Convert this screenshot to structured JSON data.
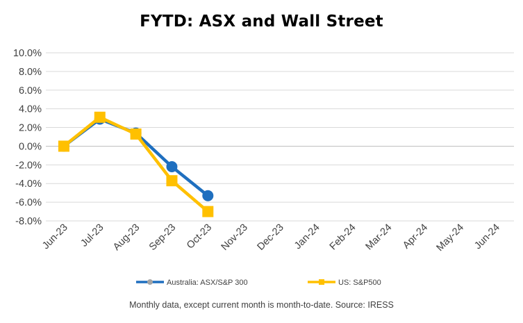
{
  "chart_data": {
    "type": "line",
    "title": "FYTD: ASX and Wall Street",
    "xlabel": "",
    "ylabel": "",
    "categories": [
      "Jun-23",
      "Jul-23",
      "Aug-23",
      "Sep-23",
      "Oct-23",
      "Nov-23",
      "Dec-23",
      "Jan-24",
      "Feb-24",
      "Mar-24",
      "Apr-24",
      "May-24",
      "Jun-24"
    ],
    "ylim": [
      -8.0,
      10.0
    ],
    "yticks": [
      -8.0,
      -6.0,
      -4.0,
      -2.0,
      0.0,
      2.0,
      4.0,
      6.0,
      8.0,
      10.0
    ],
    "ytick_labels": [
      "-8.0%",
      "-6.0%",
      "-4.0%",
      "-2.0%",
      "0.0%",
      "2.0%",
      "4.0%",
      "6.0%",
      "8.0%",
      "10.0%"
    ],
    "grid": true,
    "legend_position": "bottom",
    "series": [
      {
        "name": "Australia: ASX/S&P 300",
        "color": "#1f6fbf",
        "marker": "circle",
        "values": [
          0.0,
          2.9,
          1.4,
          -2.2,
          -5.3,
          null,
          null,
          null,
          null,
          null,
          null,
          null,
          null
        ]
      },
      {
        "name": "US: S&P500",
        "color": "#ffc000",
        "marker": "square",
        "values": [
          0.0,
          3.1,
          1.3,
          -3.7,
          -7.0,
          null,
          null,
          null,
          null,
          null,
          null,
          null,
          null
        ]
      }
    ],
    "footnote": "Monthly data, except current month is month-to-date.  Source: IRESS"
  },
  "colors": {
    "grid": "#d9d9d9",
    "axis": "#bfbfbf",
    "text": "#404040"
  }
}
